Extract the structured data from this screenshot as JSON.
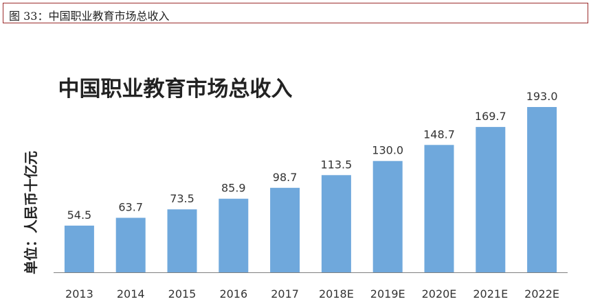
{
  "caption": "图 33：中国职业教育市场总收入",
  "chart_data": {
    "type": "bar",
    "title": "中国职业教育市场总收入",
    "ylabel": "单位：人民币十亿元",
    "xlabel": "",
    "categories": [
      "2013",
      "2014",
      "2015",
      "2016",
      "2017",
      "2018E",
      "2019E",
      "2020E",
      "2021E",
      "2022E"
    ],
    "values": [
      54.5,
      63.7,
      73.5,
      85.9,
      98.7,
      113.5,
      130.0,
      148.7,
      169.7,
      193.0
    ],
    "data_labels": [
      "54.5",
      "63.7",
      "73.5",
      "85.9",
      "98.7",
      "113.5",
      "130.0",
      "148.7",
      "169.7",
      "193.0"
    ],
    "ylim": [
      0,
      200
    ],
    "grid": false,
    "bar_color": "#6fa8dc"
  }
}
